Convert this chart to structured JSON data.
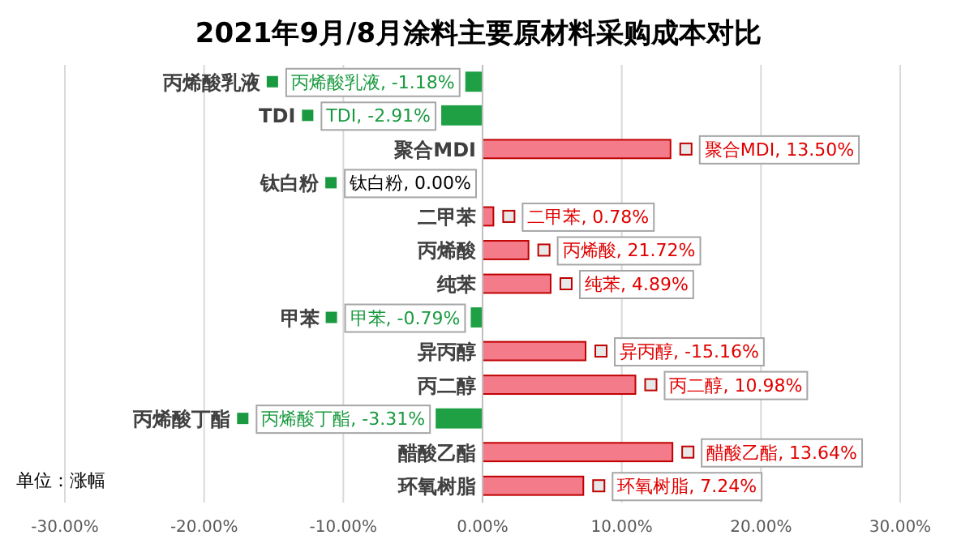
{
  "chart_data": {
    "type": "bar",
    "orientation": "horizontal",
    "title": "2021年9月/8月涂料主要原材料采购成本对比",
    "categories": [
      "丙烯酸乳液",
      "TDI",
      "聚合MDI",
      "钛白粉",
      "二甲苯",
      "丙烯酸",
      "纯苯",
      "甲苯",
      "异丙醇",
      "丙二醇",
      "丙烯酸丁酯",
      "醋酸乙酯",
      "环氧树脂"
    ],
    "values": [
      -1.18,
      -2.91,
      13.5,
      0,
      0.78,
      3.3,
      4.89,
      -0.79,
      7.4,
      10.98,
      -3.31,
      13.64,
      7.24
    ],
    "value_labels": [
      "丙烯酸乳液, -1.18%",
      "TDI, -2.91%",
      "聚合MDI, 13.50%",
      "钛白粉, 0.00%",
      "二甲苯, 0.78%",
      null,
      "纯苯, 4.89%",
      "甲苯, -0.79%",
      null,
      "丙二醇, 10.98%",
      "丙烯酸丁酯, -3.31%",
      "醋酸乙酯, 13.64%",
      "环氧树脂, 7.24%"
    ],
    "colors": [
      "#1fa045",
      "#1fa045",
      "#f47c8a",
      "#1fa045",
      "#f47c8a",
      "#f47c8a",
      "#f47c8a",
      "#1fa045",
      "#f47c8a",
      "#f47c8a",
      "#1fa045",
      "#f47c8a",
      "#f47c8a"
    ],
    "xlim": [
      -30,
      30
    ],
    "xticks": [
      {
        "value": -30,
        "label": "-30.00%"
      },
      {
        "value": -20,
        "label": "-20.00%"
      },
      {
        "value": -10,
        "label": "-10.00%"
      },
      {
        "value": 0,
        "label": "0.00%"
      },
      {
        "value": 10,
        "label": "10.00%"
      },
      {
        "value": 20,
        "label": "20.00%"
      },
      {
        "value": 30,
        "label": "30.00%"
      }
    ],
    "grid": "x",
    "annotations": [
      "单位：涨幅",
      {
        "text": "丙烯酸, 21.72%",
        "x": 3.3,
        "y": "丙烯酸"
      },
      {
        "text": "异丙醇, -15.16%",
        "x": 7.4,
        "y": "异丙醇"
      }
    ]
  }
}
